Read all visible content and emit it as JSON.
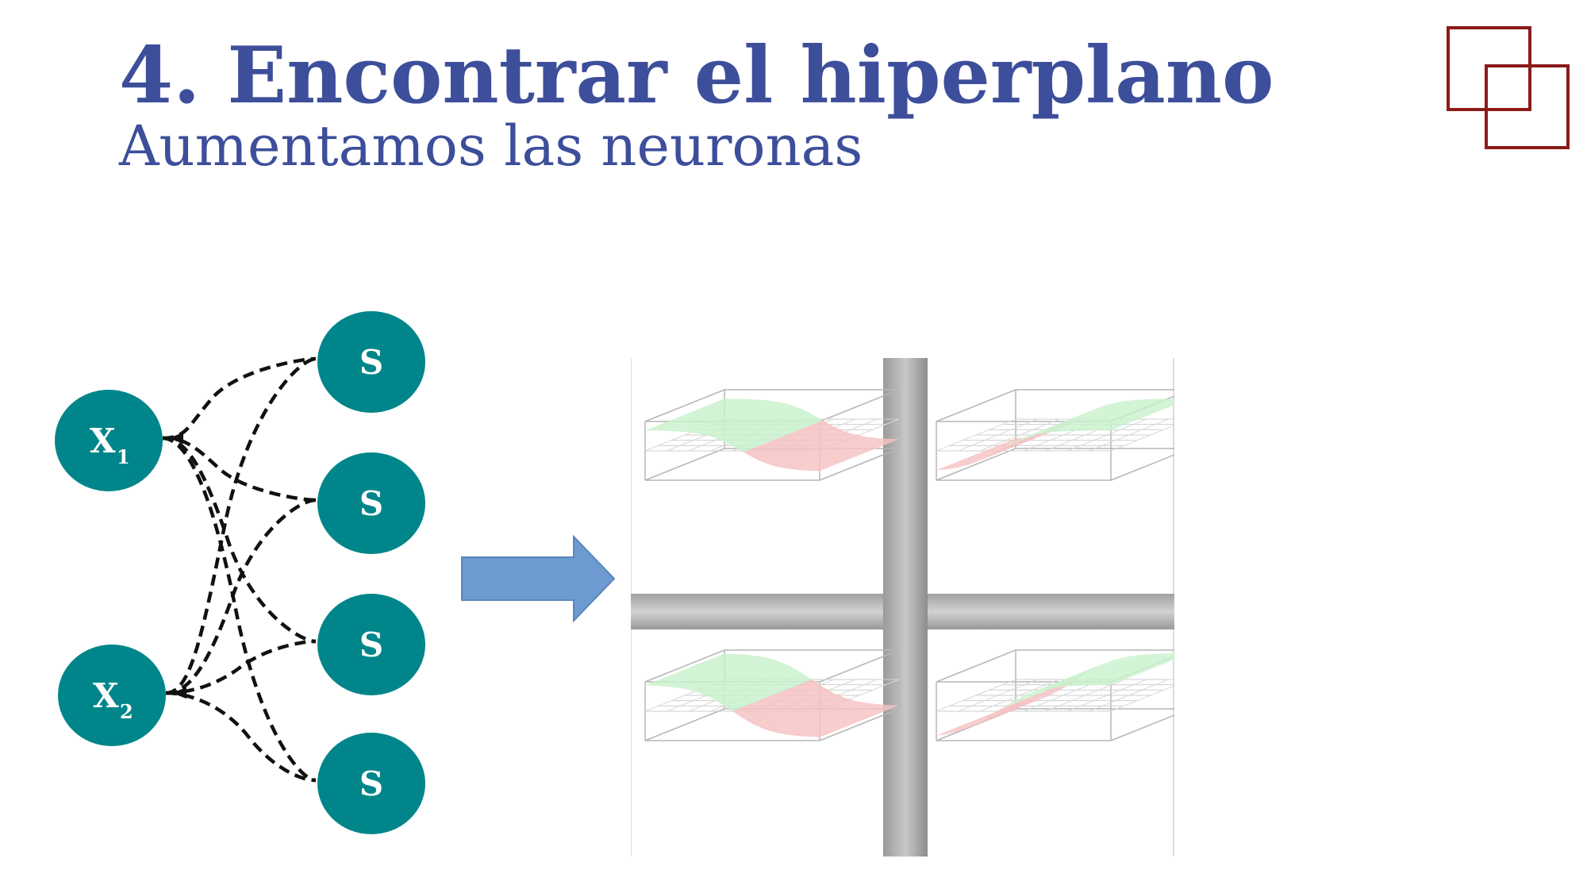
{
  "slide": {
    "title": "4. Encontrar el hiperplano",
    "subtitle": "Aumentamos las neuronas"
  },
  "colors": {
    "title": "#3d4e9b",
    "node": "#00868a",
    "logo": "#8b1a1a",
    "arrow": "#6d9bd1",
    "surface_positive": "#c9f2cc",
    "surface_negative": "#f6c2c2"
  },
  "network": {
    "inputs": [
      {
        "label": "X",
        "subscript": "1"
      },
      {
        "label": "X",
        "subscript": "2"
      }
    ],
    "hidden": [
      {
        "label": "S"
      },
      {
        "label": "S"
      },
      {
        "label": "S"
      },
      {
        "label": "S"
      }
    ],
    "connection_style": "dashed"
  },
  "plots": {
    "count": 4,
    "content": "sigmoid surfaces in 3D boxes, green above and red below a gray plane"
  }
}
